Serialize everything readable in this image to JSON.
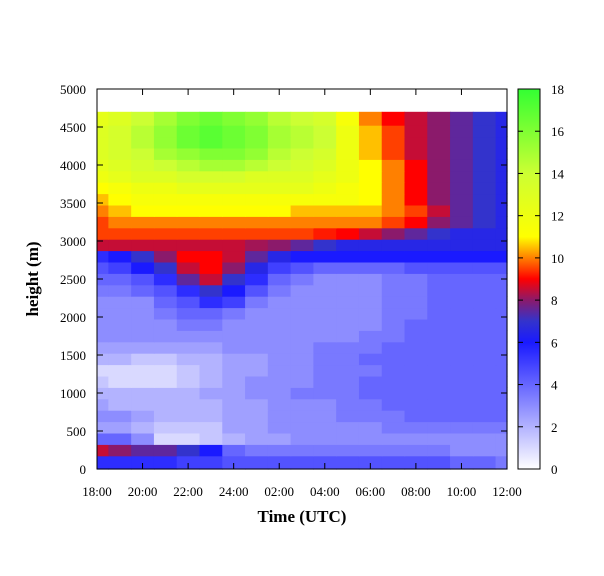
{
  "chart_data": {
    "type": "heatmap",
    "title": "",
    "xlabel": "Time (UTC)",
    "ylabel": "height (m)",
    "x_tick_labels": [
      "18:00",
      "20:00",
      "22:00",
      "24:00",
      "02:00",
      "04:00",
      "06:00",
      "08:00",
      "10:00",
      "12:00"
    ],
    "x_range_hours": [
      0,
      18
    ],
    "y_ticks": [
      0,
      500,
      1000,
      1500,
      2000,
      2500,
      3000,
      3500,
      4000,
      4500,
      5000
    ],
    "ylim": [
      0,
      5000
    ],
    "data_top_height": 4700,
    "colorbar": {
      "ticks": [
        0,
        2,
        4,
        6,
        8,
        10,
        12,
        14,
        16,
        18
      ],
      "range": [
        0,
        18
      ],
      "stops": [
        {
          "v": 0,
          "color": "#ffffff"
        },
        {
          "v": 6,
          "color": "#1a1aff"
        },
        {
          "v": 7,
          "color": "#3333cc"
        },
        {
          "v": 8,
          "color": "#8b1a6b"
        },
        {
          "v": 9,
          "color": "#ff0000"
        },
        {
          "v": 10,
          "color": "#ff8000"
        },
        {
          "v": 11,
          "color": "#ffff00"
        },
        {
          "v": 14,
          "color": "#ccff33"
        },
        {
          "v": 18,
          "color": "#33ff33"
        }
      ]
    },
    "heights": [
      100,
      250,
      400,
      550,
      700,
      850,
      1000,
      1150,
      1300,
      1450,
      1600,
      1750,
      1900,
      2050,
      2200,
      2350,
      2500,
      2650,
      2800,
      2950,
      3100,
      3250,
      3400,
      3550,
      3700,
      3850,
      4000,
      4150,
      4300,
      4450,
      4600
    ],
    "times_hours": [
      0,
      1,
      2,
      3,
      4,
      5,
      6,
      7,
      8,
      9,
      10,
      11,
      12,
      13,
      14,
      15,
      16,
      17,
      18
    ],
    "values": [
      [
        5.5,
        5.5,
        5.5,
        5.5,
        5,
        5,
        4.5,
        4.5,
        4.5,
        4.5,
        4.5,
        4.5,
        4.5,
        4.5,
        4.5,
        4.5,
        4,
        4,
        3.5
      ],
      [
        8.5,
        8,
        7.5,
        7.5,
        7,
        6,
        4,
        3.5,
        3.5,
        3.5,
        3.5,
        3.5,
        3.5,
        3.5,
        3.5,
        3.5,
        3,
        3,
        3
      ],
      [
        4,
        4,
        3,
        1,
        1,
        1.5,
        2,
        2.5,
        2.5,
        3,
        3,
        3,
        3,
        3,
        3,
        3,
        3,
        3,
        3
      ],
      [
        2.5,
        2.5,
        2,
        1.5,
        1.5,
        1.5,
        2.5,
        2.5,
        3,
        3,
        3,
        3,
        3,
        3.5,
        3.5,
        3.5,
        3.5,
        3.5,
        3.5
      ],
      [
        3,
        3,
        2.5,
        2,
        2,
        2,
        2.5,
        2.5,
        3,
        3,
        3,
        3.5,
        3.5,
        3.5,
        4,
        4,
        4,
        4,
        4
      ],
      [
        2.5,
        2,
        2,
        2,
        2,
        2,
        2.5,
        2.5,
        3,
        3,
        3,
        3.5,
        3.5,
        4,
        4,
        4,
        4,
        4,
        4
      ],
      [
        2,
        2,
        2,
        2,
        2,
        2.5,
        2.5,
        3,
        3,
        3.5,
        3.5,
        3.5,
        4,
        4,
        4,
        4,
        4,
        4,
        4
      ],
      [
        1.5,
        1,
        1,
        1,
        1.5,
        2,
        2.5,
        3,
        3,
        3,
        3.5,
        3.5,
        4,
        4,
        4,
        4,
        4,
        4,
        4
      ],
      [
        1,
        1,
        1,
        1,
        1.5,
        2,
        2.5,
        2.5,
        3,
        3,
        3.5,
        3.5,
        3.5,
        4,
        4,
        4,
        4,
        4,
        4
      ],
      [
        2,
        2,
        1.5,
        1.5,
        2,
        2,
        2.5,
        2.5,
        3,
        3,
        3.5,
        3.5,
        4,
        4,
        4,
        4,
        4,
        4,
        4
      ],
      [
        2.5,
        2.5,
        2.5,
        2.5,
        2.5,
        2.5,
        3,
        3,
        3,
        3,
        3.5,
        3.5,
        3.5,
        4,
        4,
        4,
        4,
        4,
        4
      ],
      [
        3,
        3,
        3,
        3,
        3,
        3,
        3,
        3,
        3,
        3,
        3,
        3,
        3.5,
        3.5,
        4,
        4,
        4,
        4,
        4
      ],
      [
        3,
        3,
        3,
        3,
        3.5,
        3.5,
        3,
        3,
        3,
        3,
        3,
        3,
        3,
        3.5,
        4,
        4,
        4,
        4,
        4
      ],
      [
        3,
        3,
        3,
        3.5,
        4,
        4,
        3.5,
        3,
        3,
        3,
        3,
        3,
        3,
        3.5,
        3.5,
        4,
        4,
        4,
        4
      ],
      [
        3,
        3,
        3,
        4,
        4.5,
        5.5,
        5,
        3.5,
        3,
        3,
        3,
        3,
        3,
        3.5,
        3.5,
        4,
        4,
        4,
        4
      ],
      [
        3.5,
        3.5,
        4,
        4.5,
        5.5,
        7,
        6,
        4.5,
        3.5,
        3,
        3,
        3,
        3,
        3.5,
        3.5,
        4,
        4,
        4,
        4
      ],
      [
        4,
        4,
        4.5,
        5.5,
        7.5,
        8.5,
        7,
        5.5,
        4,
        3.5,
        3,
        3,
        3,
        3.5,
        3.5,
        4,
        4,
        4,
        4
      ],
      [
        4.5,
        5,
        6,
        7,
        8.5,
        9,
        8,
        6.5,
        5,
        4.5,
        4,
        4,
        4,
        4,
        4.5,
        4.5,
        4.5,
        4.5,
        4.5
      ],
      [
        5.5,
        6,
        7,
        8,
        9,
        9,
        8.5,
        7.5,
        6.5,
        6,
        6,
        6,
        6,
        6,
        6,
        6,
        6,
        6,
        6
      ],
      [
        8.5,
        8.5,
        8.5,
        8.5,
        8.5,
        8.5,
        8.5,
        8.2,
        8,
        7.5,
        7,
        6.5,
        6.5,
        6.5,
        6.5,
        6.5,
        6.5,
        6.5,
        6.5
      ],
      [
        9.5,
        9.5,
        9.5,
        9.5,
        9.5,
        9.5,
        9.5,
        9.5,
        9.5,
        9.5,
        9.2,
        9,
        8.5,
        8,
        7.5,
        7,
        6.5,
        6.5,
        6.5
      ],
      [
        9.5,
        10,
        10,
        10,
        10,
        10,
        10,
        10,
        10,
        10,
        10,
        10,
        10,
        9.5,
        9,
        8,
        7.5,
        7,
        6.5
      ],
      [
        10,
        10.5,
        11,
        11,
        11,
        11,
        11,
        11,
        11,
        10.5,
        10.5,
        10.5,
        10.5,
        10,
        9.5,
        8.5,
        7.5,
        7,
        6.5
      ],
      [
        10.5,
        11,
        11.5,
        11.5,
        11.5,
        11.5,
        11.5,
        11.5,
        11.5,
        11.5,
        11.5,
        11.5,
        11,
        10,
        9,
        8,
        7.5,
        7,
        6.5
      ],
      [
        11,
        11.5,
        12,
        12,
        12.5,
        12.5,
        12.5,
        12.5,
        12.5,
        12.5,
        12,
        11.5,
        11,
        10,
        9,
        8,
        7.5,
        7,
        6.5
      ],
      [
        12,
        12.5,
        13,
        13,
        13.5,
        13.5,
        13.5,
        13,
        13,
        13,
        12.5,
        12,
        11,
        10,
        9,
        8,
        7.5,
        7,
        6.5
      ],
      [
        12.5,
        13,
        13.5,
        14,
        14.5,
        15,
        15,
        14.5,
        14,
        13.5,
        13,
        12,
        11,
        10,
        9,
        8,
        7.5,
        7,
        6.5
      ],
      [
        13,
        13.5,
        14,
        15,
        15.5,
        16,
        16,
        15.5,
        14.5,
        14,
        13.5,
        12,
        10.5,
        9.5,
        8.5,
        8,
        7.5,
        7,
        6.5
      ],
      [
        13,
        13.5,
        14.5,
        15.5,
        16.5,
        17,
        16.5,
        16,
        15,
        14.5,
        14,
        12,
        10.5,
        9.5,
        8.5,
        8,
        7.5,
        7,
        6.5
      ],
      [
        13,
        13.5,
        14.5,
        15.5,
        16.5,
        17,
        16.5,
        16,
        15,
        14.5,
        14,
        12,
        10.5,
        9.5,
        8.5,
        8,
        7.5,
        7,
        6.5
      ],
      [
        12.5,
        13,
        14,
        15,
        16,
        16.5,
        16,
        15.5,
        14.5,
        14,
        13.5,
        11.5,
        10,
        9,
        8.5,
        8,
        7.5,
        7,
        6.5
      ]
    ]
  }
}
